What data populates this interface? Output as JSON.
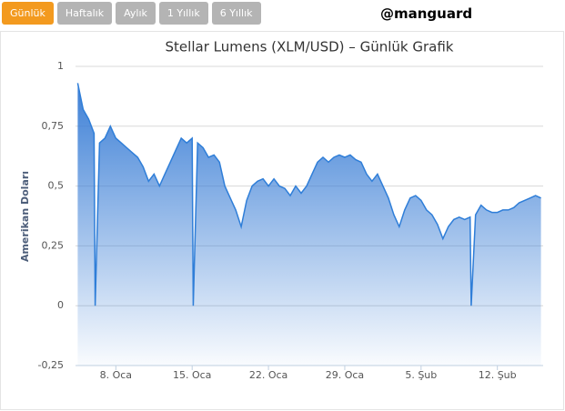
{
  "ui": {
    "buttons": [
      "Günlük",
      "Haftalık",
      "Aylık",
      "1 Yıllık",
      "6 Yıllık"
    ],
    "active_button": "Günlük",
    "handle": "@manguard"
  },
  "chart_data": {
    "type": "area",
    "title": "Stellar Lumens (XLM/USD) – Günlük Grafik",
    "y_label": "Amerikan Doları",
    "x": [
      4.5,
      5,
      5.5,
      6,
      6.1,
      6.5,
      7,
      7.5,
      8,
      8.5,
      9,
      9.5,
      10,
      10.5,
      11,
      11.5,
      12,
      12.5,
      13,
      13.5,
      14,
      14.5,
      15,
      15.1,
      15.5,
      16,
      16.5,
      17,
      17.5,
      18,
      18.5,
      19,
      19.5,
      20,
      20.5,
      21,
      21.5,
      22,
      22.5,
      23,
      23.5,
      24,
      24.5,
      25,
      25.5,
      26,
      26.5,
      27,
      27.5,
      28,
      28.5,
      29,
      29.5,
      30,
      30.5,
      31,
      31.5,
      32,
      32.5,
      33,
      33.5,
      34,
      34.5,
      35,
      35.5,
      36,
      36.5,
      37,
      37.5,
      38,
      38.5,
      39,
      39.5,
      40,
      40.5,
      40.6,
      41,
      41.5,
      42,
      42.5,
      43,
      43.5,
      44,
      44.5,
      45,
      45.5,
      46,
      46.5,
      47
    ],
    "series": [
      {
        "name": "XLM/USD",
        "color": "#2f7ed8",
        "values": [
          0.93,
          0.82,
          0.78,
          0.72,
          0,
          0.68,
          0.7,
          0.75,
          0.7,
          0.68,
          0.66,
          0.64,
          0.62,
          0.58,
          0.52,
          0.55,
          0.5,
          0.55,
          0.6,
          0.65,
          0.7,
          0.68,
          0.7,
          0,
          0.68,
          0.66,
          0.62,
          0.63,
          0.6,
          0.5,
          0.45,
          0.4,
          0.33,
          0.44,
          0.5,
          0.52,
          0.53,
          0.5,
          0.53,
          0.5,
          0.49,
          0.46,
          0.5,
          0.47,
          0.5,
          0.55,
          0.6,
          0.62,
          0.6,
          0.62,
          0.63,
          0.62,
          0.63,
          0.61,
          0.6,
          0.55,
          0.52,
          0.55,
          0.5,
          0.45,
          0.38,
          0.33,
          0.4,
          0.45,
          0.46,
          0.44,
          0.4,
          0.38,
          0.34,
          0.28,
          0.33,
          0.36,
          0.37,
          0.36,
          0.37,
          0,
          0.38,
          0.42,
          0.4,
          0.39,
          0.39,
          0.4,
          0.4,
          0.41,
          0.43,
          0.44,
          0.45,
          0.46,
          0.45
        ]
      }
    ],
    "xlim": [
      4.3,
      47.2
    ],
    "xticks": [
      {
        "value": 8,
        "label": "8. Oca"
      },
      {
        "value": 15,
        "label": "15. Oca"
      },
      {
        "value": 22,
        "label": "22. Oca"
      },
      {
        "value": 29,
        "label": "29. Oca"
      },
      {
        "value": 36,
        "label": "5. Şub"
      },
      {
        "value": 43,
        "label": "12. Şub"
      }
    ],
    "ylim": [
      -0.25,
      1
    ],
    "yticks": [
      {
        "value": -0.25,
        "label": "-0,25"
      },
      0,
      {
        "value": 0.25,
        "label": "0,25"
      },
      {
        "value": 0.5,
        "label": "0,5"
      },
      {
        "value": 0.75,
        "label": "0,75"
      },
      1
    ],
    "grid": true
  }
}
